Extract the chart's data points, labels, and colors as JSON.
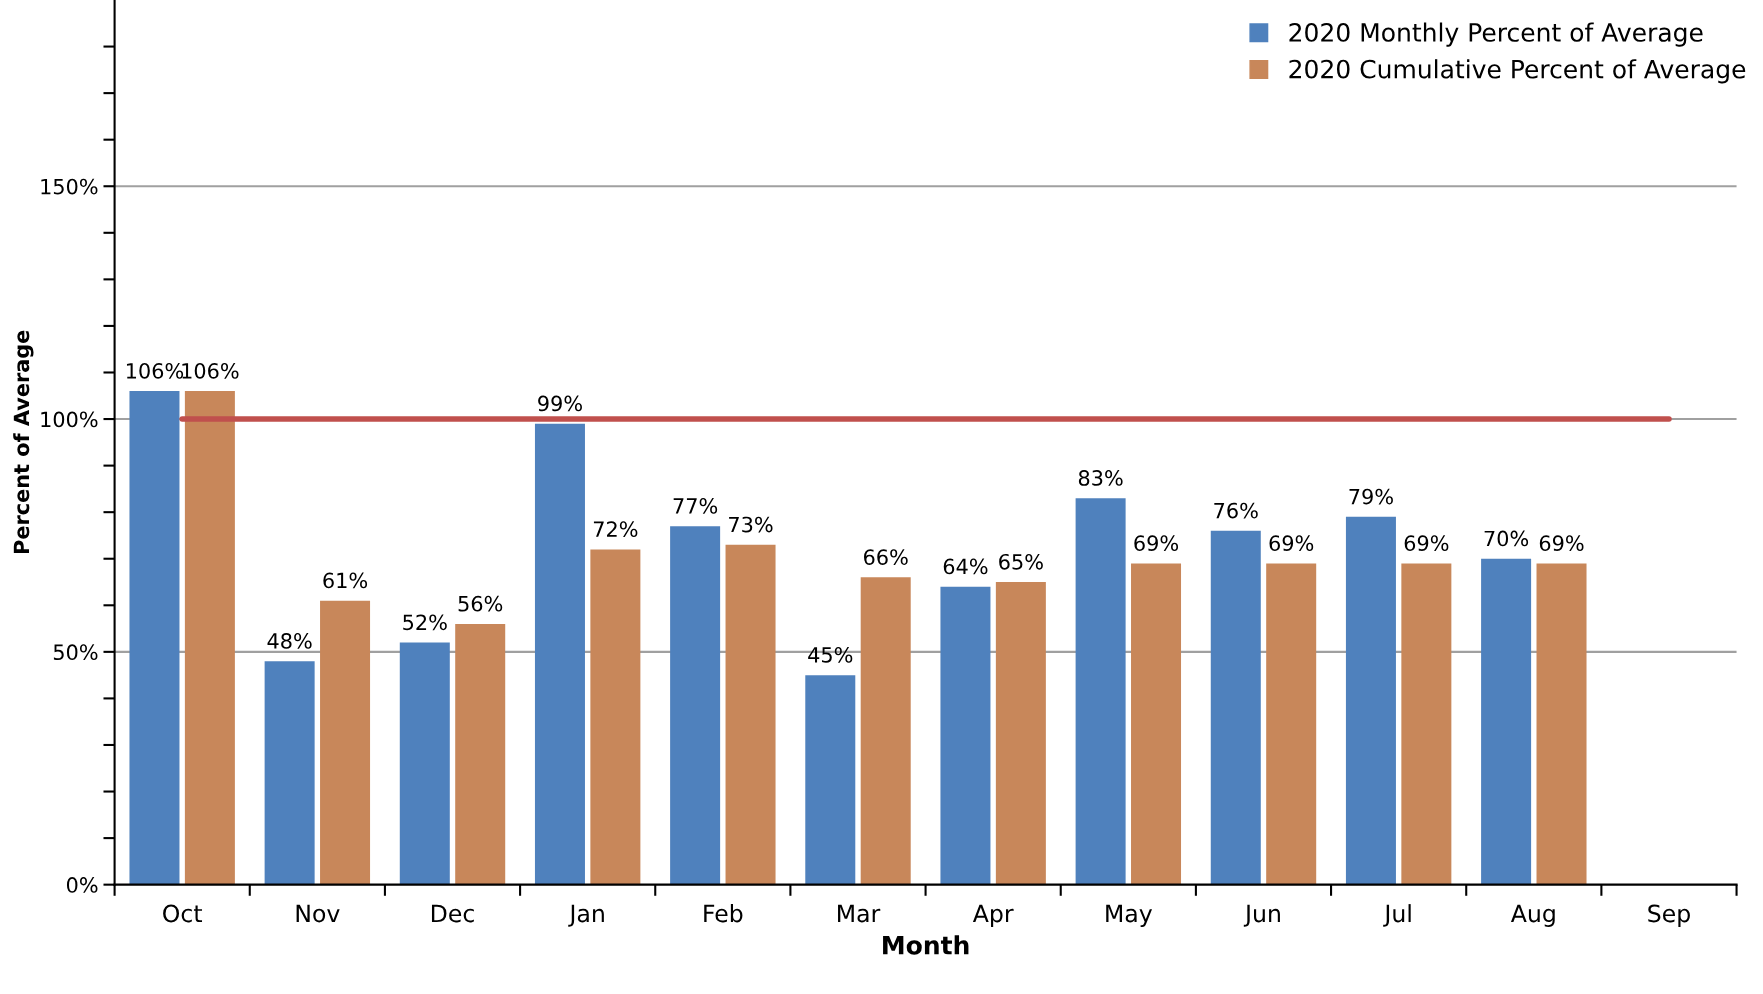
{
  "chart_data": {
    "type": "bar",
    "xlabel": "Month",
    "ylabel": "Percent of Average",
    "categories": [
      "Oct",
      "Nov",
      "Dec",
      "Jan",
      "Feb",
      "Mar",
      "Apr",
      "May",
      "Jun",
      "Jul",
      "Aug",
      "Sep"
    ],
    "series": [
      {
        "name": "2020 Monthly Percent of Average",
        "color": "#4f81bd",
        "values": [
          106,
          48,
          52,
          99,
          77,
          45,
          64,
          83,
          76,
          79,
          70,
          null
        ],
        "value_labels": [
          "106%",
          "48%",
          "52%",
          "99%",
          "77%",
          "45%",
          "64%",
          "83%",
          "76%",
          "79%",
          "70%",
          null
        ]
      },
      {
        "name": "2020 Cumulative Percent of Average",
        "color": "#c8875a",
        "values": [
          106,
          61,
          56,
          72,
          73,
          66,
          65,
          69,
          69,
          69,
          69,
          null
        ],
        "value_labels": [
          "106%",
          "61%",
          "56%",
          "72%",
          "73%",
          "66%",
          "65%",
          "69%",
          "69%",
          "69%",
          "69%",
          null
        ]
      },
      {
        "type": "line",
        "color": "#c0504d",
        "values": [
          100,
          100,
          100,
          100,
          100,
          100,
          100,
          100,
          100,
          100,
          100,
          100
        ]
      }
    ],
    "ylim": [
      0,
      190
    ],
    "yticks": [
      {
        "value": 0,
        "label": "0%"
      },
      {
        "value": 10,
        "label": null
      },
      {
        "value": 20,
        "label": null
      },
      {
        "value": 30,
        "label": null
      },
      {
        "value": 40,
        "label": null
      },
      {
        "value": 50,
        "label": "50%"
      },
      {
        "value": 60,
        "label": null
      },
      {
        "value": 70,
        "label": null
      },
      {
        "value": 80,
        "label": null
      },
      {
        "value": 90,
        "label": null
      },
      {
        "value": 100,
        "label": "100%"
      },
      {
        "value": 110,
        "label": null
      },
      {
        "value": 120,
        "label": null
      },
      {
        "value": 130,
        "label": null
      },
      {
        "value": 140,
        "label": null
      },
      {
        "value": 150,
        "label": "150%"
      },
      {
        "value": 160,
        "label": null
      },
      {
        "value": 170,
        "label": null
      },
      {
        "value": 180,
        "label": null
      }
    ],
    "grid": "y",
    "legend": "top right",
    "marker": "none"
  }
}
